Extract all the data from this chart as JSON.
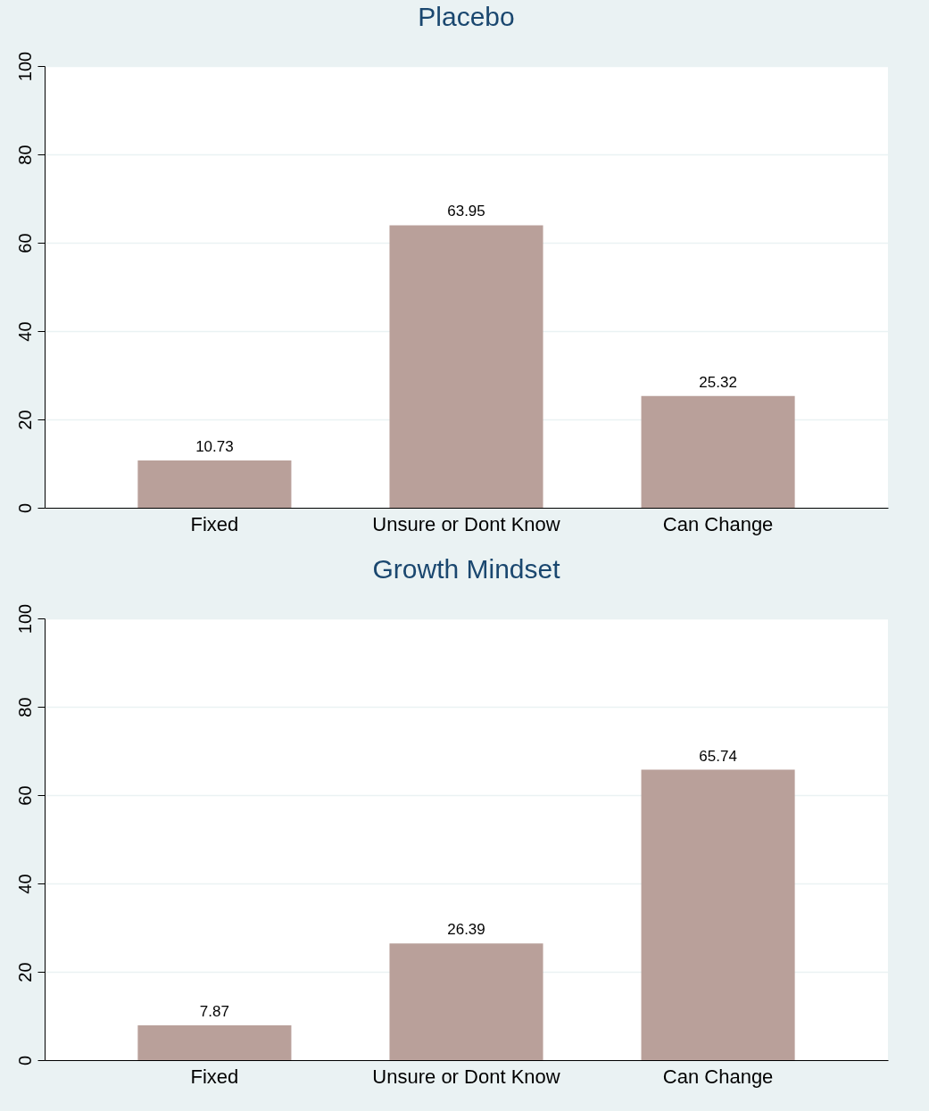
{
  "chart_data": [
    {
      "type": "bar",
      "title": "Placebo",
      "categories": [
        "Fixed",
        "Unsure or Dont Know",
        "Can Change"
      ],
      "values": [
        10.73,
        63.95,
        25.32
      ],
      "color": "#b9a09a",
      "ylim": [
        0,
        100
      ],
      "yticks": [
        0,
        20,
        40,
        60,
        80,
        100
      ],
      "grid": "y",
      "data_labels": true
    },
    {
      "type": "bar",
      "title": "Growth Mindset",
      "categories": [
        "Fixed",
        "Unsure or Dont Know",
        "Can Change"
      ],
      "values": [
        7.87,
        26.39,
        65.74
      ],
      "color": "#b9a09a",
      "ylim": [
        0,
        100
      ],
      "yticks": [
        0,
        20,
        40,
        60,
        80,
        100
      ],
      "grid": "y",
      "data_labels": true
    }
  ]
}
